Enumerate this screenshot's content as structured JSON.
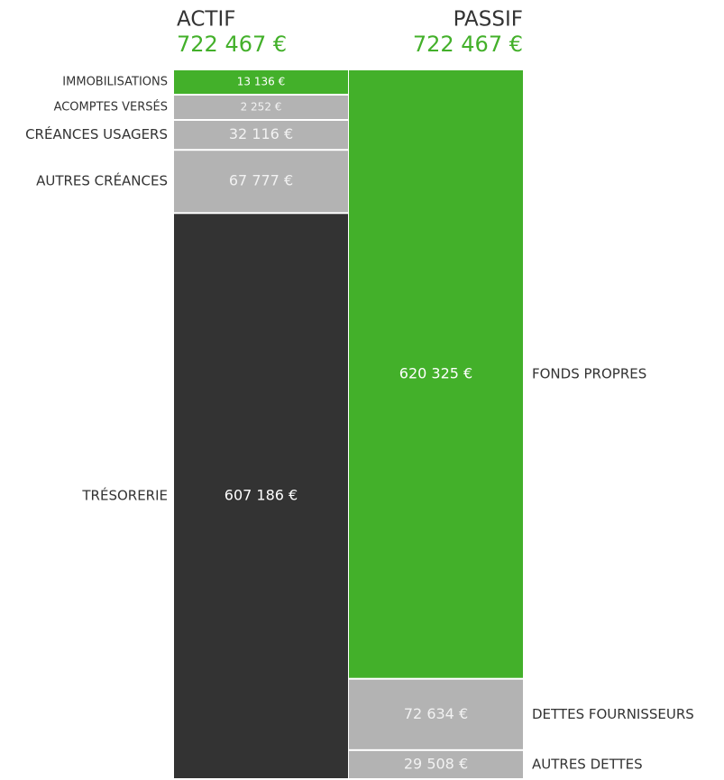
{
  "chart_data": {
    "type": "balance",
    "columns": [
      {
        "name": "ACTIF",
        "total": 722467,
        "total_label": "722 467 €",
        "segments": [
          {
            "name": "IMMOBILISATIONS",
            "value": 13136,
            "value_label": "13 136 €",
            "color": "#43b02a"
          },
          {
            "name": "ACOMPTES VERSÉS",
            "value": 2252,
            "value_label": "2 252 €",
            "color": "#b3b3b3"
          },
          {
            "name": "CRÉANCES USAGERS",
            "value": 32116,
            "value_label": "32 116 €",
            "color": "#b3b3b3"
          },
          {
            "name": "AUTRES CRÉANCES",
            "value": 67777,
            "value_label": "67 777 €",
            "color": "#b3b3b3"
          },
          {
            "name": "TRÉSORERIE",
            "value": 607186,
            "value_label": "607 186 €",
            "color": "#333333"
          }
        ]
      },
      {
        "name": "PASSIF",
        "total": 722467,
        "total_label": "722 467 €",
        "segments": [
          {
            "name": "FONDS PROPRES",
            "value": 620325,
            "value_label": "620 325 €",
            "color": "#43b02a"
          },
          {
            "name": "DETTES FOURNISSEURS",
            "value": 72634,
            "value_label": "72 634 €",
            "color": "#b3b3b3"
          },
          {
            "name": "AUTRES DETTES",
            "value": 29508,
            "value_label": "29 508 €",
            "color": "#b3b3b3"
          }
        ]
      }
    ]
  }
}
